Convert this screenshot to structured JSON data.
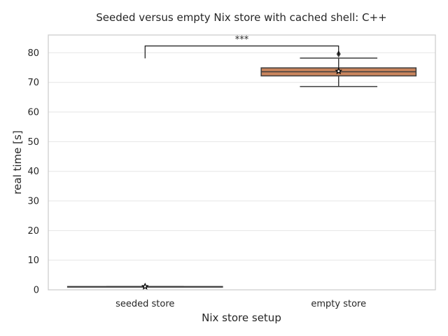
{
  "chart_data": {
    "type": "box",
    "title": "Seeded versus empty Nix store with cached shell: C++",
    "xlabel": "Nix store setup",
    "ylabel": "real time [s]",
    "ylim": [
      0,
      86
    ],
    "yticks": [
      0,
      10,
      20,
      30,
      40,
      50,
      60,
      70,
      80
    ],
    "grid": "horizontal",
    "categories": [
      "seeded store",
      "empty store"
    ],
    "boxes": [
      {
        "category": "seeded store",
        "whisker_low": 1.0,
        "q1": 1.0,
        "median": 1.0,
        "q3": 1.1,
        "whisker_high": 1.1,
        "mean": 1.1,
        "outliers": [],
        "color": "#5b6d9e"
      },
      {
        "category": "empty store",
        "whisker_low": 68.6,
        "q1": 72.2,
        "median": 73.6,
        "q3": 74.9,
        "whisker_high": 78.2,
        "mean": 73.8,
        "outliers": [
          79.6
        ],
        "color": "#c9855d"
      }
    ],
    "significance": {
      "between": [
        "seeded store",
        "empty store"
      ],
      "label": "***",
      "y": 82.3
    }
  }
}
